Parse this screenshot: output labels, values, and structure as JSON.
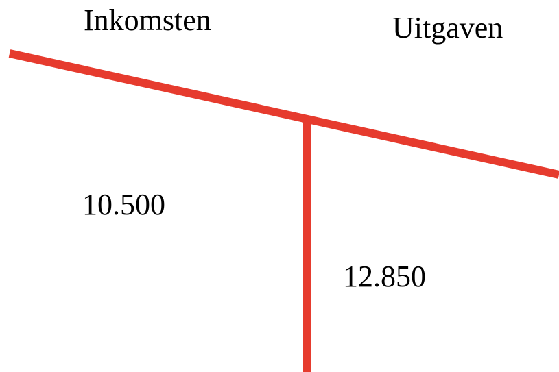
{
  "account": {
    "left": {
      "label": "Inkomsten",
      "amount": "10.500"
    },
    "right": {
      "label": "Uitgaven",
      "amount": "12.850"
    }
  }
}
